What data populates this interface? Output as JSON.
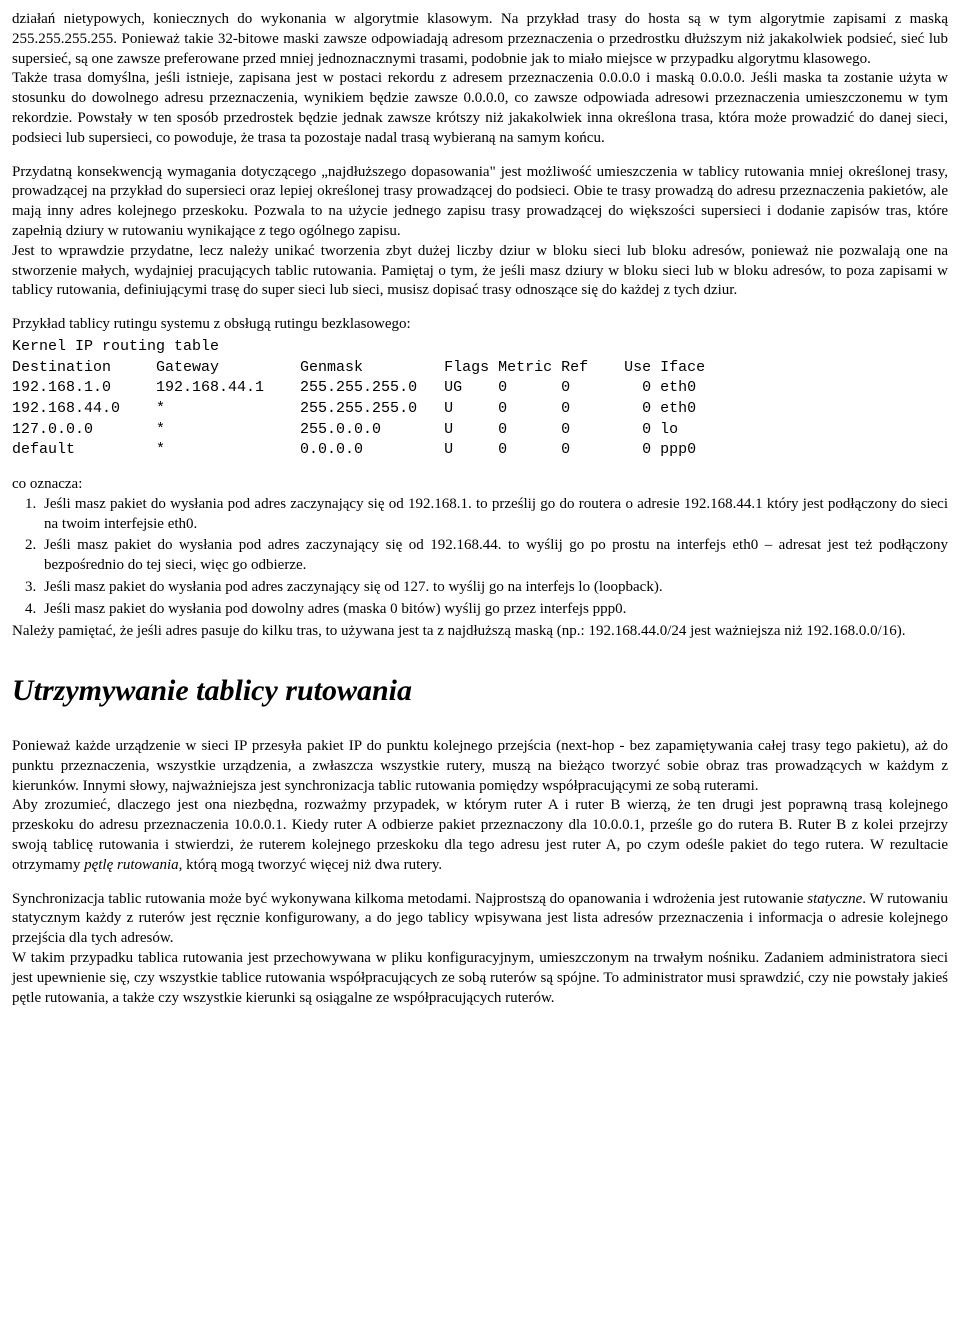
{
  "para1": "działań nietypowych, koniecznych do wykonania w algorytmie klasowym. Na przykład trasy do hosta są w tym algorytmie zapisami z maską 255.255.255.255. Ponieważ takie 32-bitowe maski zawsze odpowiadają adresom przeznaczenia o przedrostku dłuższym niż jakakolwiek podsieć, sieć lub supersieć, są one zawsze preferowane przed mniej jednoznacznymi trasami, podobnie jak to miało miejsce w przypadku algorytmu klasowego.",
  "para1b": "Także trasa domyślna, jeśli istnieje, zapisana jest w postaci rekordu z adresem przeznaczenia 0.0.0.0 i maską 0.0.0.0. Jeśli maska ta zostanie użyta w stosunku do dowolnego adresu przeznaczenia, wynikiem będzie zawsze 0.0.0.0, co zawsze odpowiada adresowi przeznaczenia umieszczonemu w tym rekordzie. Powstały w ten sposób przedrostek będzie jednak zawsze krótszy niż jakakolwiek inna określona trasa, która może prowadzić do danej sieci, podsieci lub supersieci, co powoduje, że trasa ta pozostaje nadal trasą wybieraną na samym końcu.",
  "para2a": "Przydatną konsekwencją wymagania dotyczącego „najdłuższego dopasowania\" jest możliwość umieszczenia w tablicy rutowania mniej określonej trasy, prowadzącej na przykład do supersieci oraz lepiej określonej trasy prowadzącej do podsieci. Obie te trasy prowadzą do adresu przeznaczenia pakietów, ale mają inny adres kolejnego przeskoku. Pozwala to na użycie jednego zapisu trasy prowadzącej do większości supersieci i dodanie zapisów tras, które zapełnią dziury w rutowaniu wynikające z tego ogólnego zapisu.",
  "para2b": "Jest to wprawdzie przydatne, lecz należy unikać tworzenia zbyt dużej liczby dziur w bloku sieci lub bloku adresów, ponieważ nie pozwalają one na stworzenie małych, wydajniej pracujących tablic rutowania. Pamiętaj o tym, że jeśli masz dziury w bloku sieci lub w bloku adresów, to poza zapisami w tablicy rutowania, definiującymi trasę do super sieci lub sieci, musisz dopisać trasy odnoszące się do każdej z tych dziur.",
  "table_intro": "Przykład tablicy rutingu systemu z obsługą rutingu bezklasowego:",
  "routing_table": "Kernel IP routing table\nDestination     Gateway         Genmask         Flags Metric Ref    Use Iface\n192.168.1.0     192.168.44.1    255.255.255.0   UG    0      0        0 eth0\n192.168.44.0    *               255.255.255.0   U     0      0        0 eth0\n127.0.0.0       *               255.0.0.0       U     0      0        0 lo\ndefault         *               0.0.0.0         U     0      0        0 ppp0",
  "meaning_label": "co oznacza:",
  "list_items": [
    "Jeśli masz pakiet do wysłania pod adres zaczynający się od 192.168.1. to prześlij go do routera o adresie 192.168.44.1 który jest podłączony do sieci na twoim interfejsie eth0.",
    "Jeśli masz pakiet do wysłania pod adres zaczynający się od 192.168.44. to wyślij go po prostu na interfejs eth0 – adresat jest też podłączony bezpośrednio do tej sieci, więc go odbierze.",
    "Jeśli masz pakiet do wysłania pod adres zaczynający się od 127. to wyślij go na interfejs lo (loopback).",
    "Jeśli masz pakiet do wysłania pod dowolny adres (maska 0 bitów) wyślij go przez interfejs ppp0."
  ],
  "after_list": "Należy pamiętać, że jeśli adres pasuje do kilku tras, to używana jest ta z najdłuższą maską (np.: 192.168.44.0/24 jest ważniejsza niż 192.168.0.0/16).",
  "heading": "Utrzymywanie tablicy rutowania",
  "para3a": "Ponieważ każde urządzenie w sieci IP przesyła pakiet IP do punktu kolejnego przejścia (next-hop - bez zapamiętywania całej trasy tego pakietu), aż do punktu przeznaczenia, wszystkie urządzenia, a zwłaszcza wszystkie rutery, muszą na bieżąco tworzyć sobie obraz tras prowadzących w każdym z kierunków. Innymi słowy, najważniejsza jest synchronizacja tablic rutowania pomiędzy współpracującymi ze sobą ruterami.",
  "para3b_pre": "Aby zrozumieć, dlaczego jest ona niezbędna, rozważmy przypadek, w którym ruter A i ruter B wierzą, że ten drugi jest poprawną trasą kolejnego przeskoku do adresu przeznaczenia 10.0.0.1. Kiedy ruter A odbierze pakiet przeznaczony dla 10.0.0.1, prześle go do rutera B. Ruter B z kolei przejrzy swoją tablicę rutowania i stwierdzi, że ruterem kolejnego przeskoku dla tego adresu jest ruter A, po czym odeśle pakiet do tego rutera. W rezultacie otrzymamy ",
  "para3b_em": "pętlę rutowania,",
  "para3b_post": " którą mogą tworzyć więcej niż dwa rutery.",
  "para4_pre": "Synchronizacja tablic rutowania może być wykonywana kilkoma metodami. Najprostszą do opanowania i wdrożenia jest rutowanie ",
  "para4_em": "statyczne",
  "para4_post": ". W rutowaniu statycznym każdy z ruterów jest ręcznie konfigurowany, a do jego tablicy wpisywana jest lista adresów przeznaczenia i informacja o adresie kolejnego przejścia dla tych adresów.",
  "para5": "W takim przypadku tablica rutowania jest przechowywana w pliku konfiguracyjnym, umieszczonym na trwałym nośniku. Zadaniem administratora sieci jest upewnienie się, czy wszystkie tablice rutowania współpracujących ze sobą ruterów są spójne. To administrator musi sprawdzić, czy nie powstały jakieś pętle rutowania, a także czy wszystkie kierunki są osiągalne ze współpracujących ruterów."
}
